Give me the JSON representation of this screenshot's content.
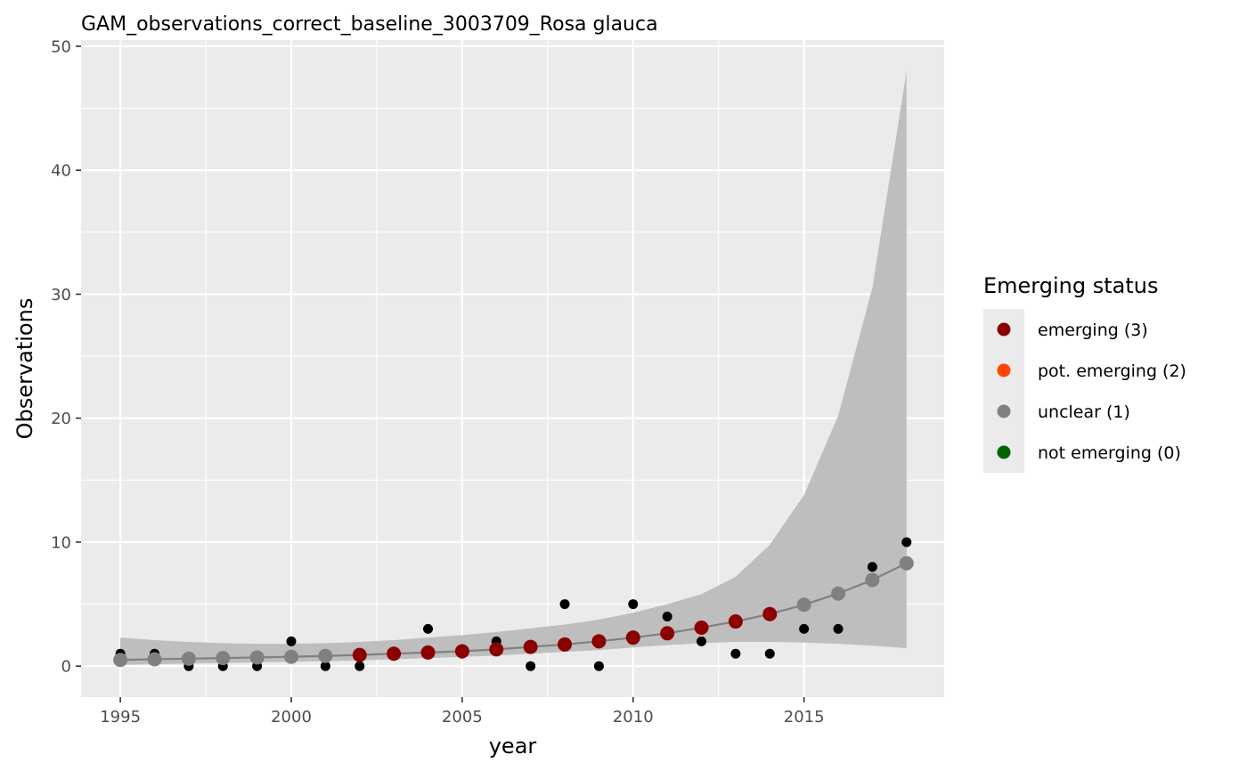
{
  "chart_data": {
    "type": "line",
    "title": "GAM_observations_correct_baseline_3003709_Rosa glauca",
    "xlabel": "year",
    "ylabel": "Observations",
    "xlim": [
      1993.85,
      2019.1
    ],
    "ylim": [
      -2.5,
      50.5
    ],
    "x_ticks": [
      1995,
      2000,
      2005,
      2010,
      2015
    ],
    "y_ticks": [
      0,
      10,
      20,
      30,
      40,
      50
    ],
    "x_tick_labels": [
      "1995",
      "2000",
      "2005",
      "2010",
      "2015"
    ],
    "y_tick_labels": [
      "0",
      "10",
      "20",
      "30",
      "40",
      "50"
    ],
    "grid": true,
    "legend": {
      "title": "Emerging status",
      "placement": "right",
      "entries": [
        {
          "label": "emerging (3)",
          "color": "#8b0000"
        },
        {
          "label": "pot. emerging (2)",
          "color": "#ff4500"
        },
        {
          "label": "unclear (1)",
          "color": "#808080"
        },
        {
          "label": "not emerging (0)",
          "color": "#006400"
        }
      ]
    },
    "observations": {
      "x": [
        1995,
        1996,
        1997,
        1998,
        1999,
        2000,
        2001,
        2002,
        2004,
        2005,
        2006,
        2007,
        2008,
        2009,
        2010,
        2011,
        2012,
        2013,
        2014,
        2015,
        2016,
        2017,
        2018
      ],
      "y": [
        1,
        1,
        0,
        0,
        0,
        2,
        0,
        0,
        3,
        1,
        2,
        0,
        5,
        0,
        5,
        4,
        2,
        1,
        1,
        3,
        3,
        8,
        10
      ],
      "color": "#000000"
    },
    "fit": {
      "x": [
        1995,
        1996,
        1997,
        1998,
        1999,
        2000,
        2001,
        2002,
        2003,
        2004,
        2005,
        2006,
        2007,
        2008,
        2009,
        2010,
        2011,
        2012,
        2013,
        2014,
        2015,
        2016,
        2017,
        2018
      ],
      "y": [
        0.5,
        0.55,
        0.6,
        0.65,
        0.7,
        0.75,
        0.82,
        0.9,
        1.0,
        1.1,
        1.2,
        1.35,
        1.55,
        1.75,
        2.0,
        2.3,
        2.65,
        3.1,
        3.6,
        4.2,
        4.95,
        5.85,
        6.95,
        8.3
      ],
      "lower": [
        0.1,
        0.15,
        0.2,
        0.25,
        0.3,
        0.35,
        0.4,
        0.45,
        0.55,
        0.65,
        0.75,
        0.85,
        1.0,
        1.15,
        1.3,
        1.5,
        1.7,
        1.85,
        1.95,
        1.95,
        1.9,
        1.8,
        1.65,
        1.45
      ],
      "upper": [
        2.3,
        2.1,
        1.95,
        1.85,
        1.8,
        1.8,
        1.85,
        1.95,
        2.1,
        2.3,
        2.5,
        2.75,
        3.05,
        3.35,
        3.75,
        4.3,
        5.0,
        5.8,
        7.2,
        9.8,
        13.8,
        20.2,
        30.5,
        48.0
      ],
      "line_color": "#808080",
      "band_color": "#bebebe",
      "status": [
        "unclear (1)",
        "unclear (1)",
        "unclear (1)",
        "unclear (1)",
        "unclear (1)",
        "unclear (1)",
        "unclear (1)",
        "emerging (3)",
        "emerging (3)",
        "emerging (3)",
        "emerging (3)",
        "emerging (3)",
        "emerging (3)",
        "emerging (3)",
        "emerging (3)",
        "emerging (3)",
        "emerging (3)",
        "emerging (3)",
        "emerging (3)",
        "emerging (3)",
        "unclear (1)",
        "unclear (1)",
        "unclear (1)",
        "unclear (1)"
      ]
    }
  }
}
